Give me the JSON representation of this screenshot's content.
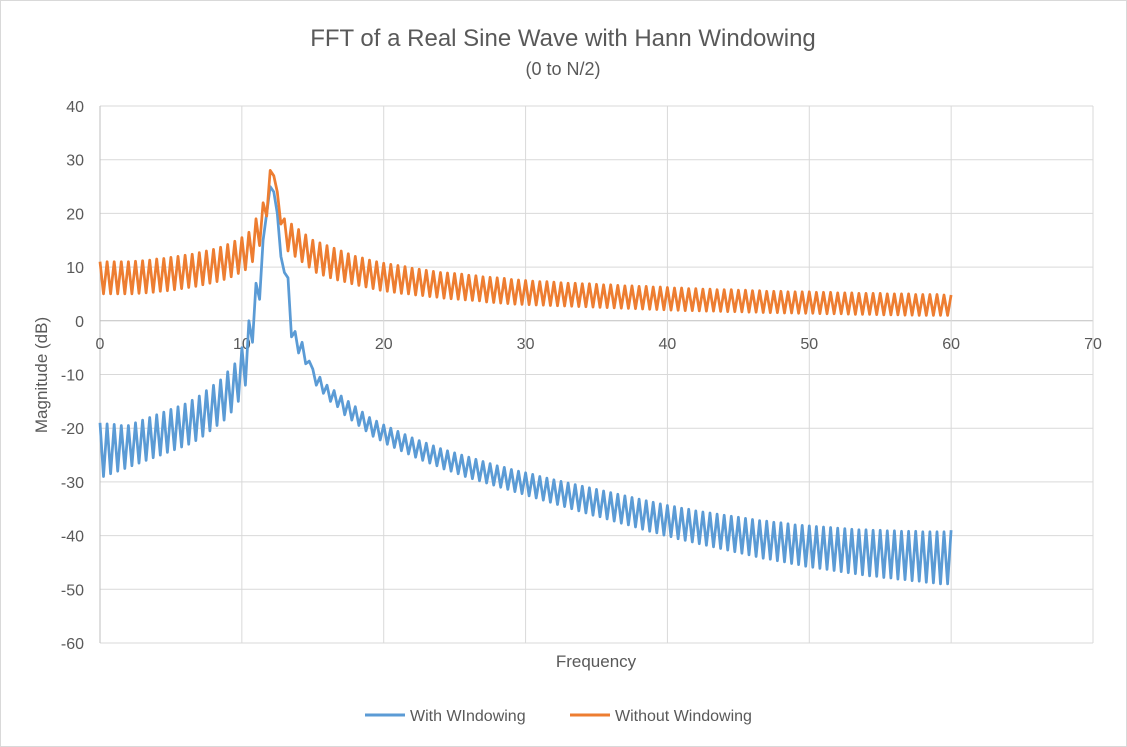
{
  "chart_data": {
    "type": "line",
    "title": "FFT of a Real Sine Wave with Hann Windowing",
    "subtitle": "(0 to N/2)",
    "xlabel": "Frequency",
    "ylabel": "Magnitude (dB)",
    "xlim": [
      0,
      70
    ],
    "ylim": [
      -60,
      40
    ],
    "xticks": [
      0,
      10,
      20,
      30,
      40,
      50,
      60,
      70
    ],
    "yticks": [
      40,
      30,
      20,
      10,
      0,
      -10,
      -20,
      -30,
      -40,
      -50,
      -60
    ],
    "grid": true,
    "legend": "bottom",
    "x_start": 0,
    "x_step": 0.25,
    "series": [
      {
        "name": "With WIndowing",
        "color": "#5B9BD5",
        "values": [
          -19,
          -29,
          -19.2,
          -28.5,
          -19.3,
          -28,
          -19.5,
          -27.5,
          -19.5,
          -27,
          -19,
          -26.5,
          -18.5,
          -26,
          -18,
          -25.5,
          -17.5,
          -25,
          -17,
          -24.5,
          -16.5,
          -24,
          -16,
          -23.5,
          -15.5,
          -23,
          -14.8,
          -22.3,
          -14,
          -21.5,
          -13,
          -20.5,
          -12,
          -19.5,
          -11,
          -18.5,
          -9.5,
          -17,
          -8,
          -15,
          -5,
          -12,
          0,
          -4,
          7,
          4,
          15,
          20,
          25,
          24,
          20,
          12,
          9,
          8,
          -3,
          -2,
          -6,
          -4,
          -8,
          -7.5,
          -9,
          -12,
          -10.5,
          -13.5,
          -12,
          -15,
          -13,
          -16,
          -14,
          -17.5,
          -15,
          -18.5,
          -16,
          -19.5,
          -17,
          -20.5,
          -18,
          -21.5,
          -18.7,
          -22.2,
          -19.4,
          -23,
          -20,
          -23.6,
          -20.6,
          -24.2,
          -21.2,
          -24.8,
          -21.8,
          -25.4,
          -22.3,
          -26,
          -22.8,
          -26.5,
          -23.3,
          -27,
          -23.8,
          -27.6,
          -24.2,
          -28,
          -24.6,
          -28.5,
          -25,
          -29,
          -25.4,
          -29.4,
          -25.8,
          -29.8,
          -26.2,
          -30.2,
          -26.6,
          -30.6,
          -27,
          -31,
          -27.3,
          -31.4,
          -27.7,
          -31.8,
          -28,
          -32.2,
          -28.3,
          -32.6,
          -28.6,
          -33,
          -29,
          -33.4,
          -29.3,
          -33.8,
          -29.6,
          -34.2,
          -29.9,
          -34.6,
          -30.2,
          -35,
          -30.5,
          -35.4,
          -30.8,
          -35.8,
          -31.1,
          -36.2,
          -31.4,
          -36.5,
          -31.7,
          -36.9,
          -32,
          -37.3,
          -32.3,
          -37.7,
          -32.6,
          -38,
          -32.9,
          -38.4,
          -33.2,
          -38.8,
          -33.5,
          -39.2,
          -33.8,
          -39.5,
          -34.1,
          -39.9,
          -34.4,
          -40.2,
          -34.6,
          -40.6,
          -34.9,
          -40.9,
          -35.1,
          -41.2,
          -35.4,
          -41.5,
          -35.6,
          -41.8,
          -35.8,
          -42.1,
          -36,
          -42.4,
          -36.2,
          -42.7,
          -36.4,
          -43,
          -36.6,
          -43.3,
          -36.8,
          -43.6,
          -37,
          -43.9,
          -37.2,
          -44.2,
          -37.3,
          -44.4,
          -37.5,
          -44.7,
          -37.6,
          -44.9,
          -37.8,
          -45.2,
          -38,
          -45.4,
          -38.1,
          -45.7,
          -38.2,
          -45.9,
          -38.3,
          -46.1,
          -38.4,
          -46.3,
          -38.5,
          -46.5,
          -38.6,
          -46.7,
          -38.7,
          -46.9,
          -38.8,
          -47.1,
          -38.9,
          -47.3,
          -38.9,
          -47.5,
          -39,
          -47.6,
          -39,
          -47.8,
          -39.1,
          -47.9,
          -39.1,
          -48.1,
          -39.2,
          -48.2,
          -39.2,
          -48.4,
          -39.2,
          -48.5,
          -39.3,
          -48.7,
          -39.3,
          -48.8,
          -39.3,
          -49,
          -39.3,
          -49,
          -39
        ]
      },
      {
        "name": "Without Windowing",
        "color": "#ED7D31",
        "values": [
          11,
          5,
          11,
          5,
          11,
          5,
          11,
          5,
          11,
          5,
          11.1,
          5.1,
          11.2,
          5.2,
          11.3,
          5.3,
          11.5,
          5.5,
          11.6,
          5.6,
          11.8,
          5.8,
          12,
          6,
          12.2,
          6.2,
          12.4,
          6.4,
          12.7,
          6.7,
          13,
          7,
          13.3,
          7.3,
          13.7,
          7.7,
          14.2,
          8.2,
          14.8,
          8.8,
          15.5,
          9.5,
          16.5,
          11,
          19,
          14,
          22,
          19.5,
          28,
          27,
          24,
          18,
          19,
          13,
          18,
          12,
          17,
          11,
          16,
          10,
          15,
          9,
          14.5,
          8.5,
          14,
          8,
          13.5,
          7.6,
          13,
          7.3,
          12.5,
          6.9,
          12,
          6.6,
          11.7,
          6.3,
          11.3,
          6,
          11,
          5.7,
          10.7,
          5.5,
          10.5,
          5.3,
          10.3,
          5.1,
          10.1,
          5,
          9.8,
          4.8,
          9.6,
          4.7,
          9.4,
          4.5,
          9.2,
          4.4,
          9,
          4.2,
          8.9,
          4.1,
          8.8,
          4,
          8.7,
          3.9,
          8.5,
          3.8,
          8.4,
          3.7,
          8.2,
          3.5,
          8.1,
          3.4,
          8,
          3.3,
          7.9,
          3.2,
          7.7,
          3.1,
          7.6,
          3.05,
          7.5,
          3,
          7.4,
          2.95,
          7.3,
          2.9,
          7.3,
          2.85,
          7.2,
          2.8,
          7.1,
          2.75,
          7,
          2.7,
          7,
          2.65,
          6.9,
          2.6,
          6.9,
          2.55,
          6.8,
          2.5,
          6.7,
          2.45,
          6.7,
          2.4,
          6.6,
          2.35,
          6.5,
          2.3,
          6.5,
          2.25,
          6.4,
          2.2,
          6.4,
          2.15,
          6.3,
          2.1,
          6.3,
          2.05,
          6.2,
          2,
          6.1,
          1.95,
          6.1,
          1.9,
          6,
          1.9,
          6,
          1.85,
          5.9,
          1.8,
          5.9,
          1.8,
          5.8,
          1.75,
          5.8,
          1.7,
          5.8,
          1.7,
          5.7,
          1.65,
          5.7,
          1.6,
          5.6,
          1.6,
          5.6,
          1.55,
          5.5,
          1.5,
          5.5,
          1.5,
          5.5,
          1.45,
          5.4,
          1.45,
          5.4,
          1.4,
          5.4,
          1.4,
          5.4,
          1.4,
          5.3,
          1.35,
          5.3,
          1.3,
          5.3,
          1.3,
          5.2,
          1.3,
          5.2,
          1.25,
          5.2,
          1.2,
          5.1,
          1.2,
          5.1,
          1.2,
          5.1,
          1.15,
          5.1,
          1.1,
          5,
          1.1,
          5,
          1.1,
          5,
          1.05,
          5,
          1.05,
          4.9,
          1,
          4.9,
          1,
          4.9,
          1,
          4.9,
          1,
          4.8,
          1,
          4.8
        ]
      }
    ]
  }
}
